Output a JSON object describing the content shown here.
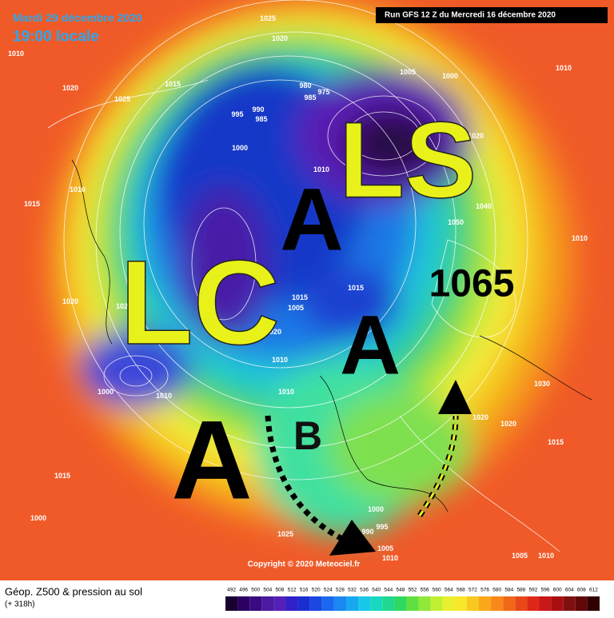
{
  "header": {
    "date": "Mardi 29 décembre 2020",
    "time": "19:00 locale",
    "run": "Run GFS 12 Z du Mercredi 16 décembre 2020"
  },
  "annotations": {
    "ls": "LS",
    "a_north": "A",
    "lc": "LC",
    "pressure": "1065",
    "a_center": "A",
    "b": "B",
    "a_west": "A"
  },
  "isobar_labels": [
    "1010",
    "1020",
    "1025",
    "1015",
    "1025",
    "1020",
    "1005",
    "1000",
    "1010",
    "980",
    "975",
    "985",
    "995",
    "990",
    "985",
    "1000",
    "1010",
    "1020",
    "1040",
    "1050",
    "1010",
    "1015",
    "1010",
    "1020",
    "1025",
    "1015",
    "1005",
    "1015",
    "1020",
    "1010",
    "1010",
    "1000",
    "1010",
    "1015",
    "1000",
    "1025",
    "1000",
    "995",
    "990",
    "1005",
    "1010",
    "1020",
    "1020",
    "1015",
    "1030",
    "1005",
    "1010"
  ],
  "footer": {
    "title": "Géop. Z500 & pression au sol",
    "lead": "(+ 318h)",
    "copyright": "Copyright © 2020 Meteociel.fr"
  },
  "scale": [
    492,
    496,
    500,
    504,
    508,
    512,
    516,
    520,
    524,
    528,
    532,
    536,
    540,
    544,
    548,
    552,
    556,
    560,
    564,
    568,
    572,
    576,
    580,
    584,
    588,
    592,
    596,
    600,
    604,
    608,
    612
  ]
}
